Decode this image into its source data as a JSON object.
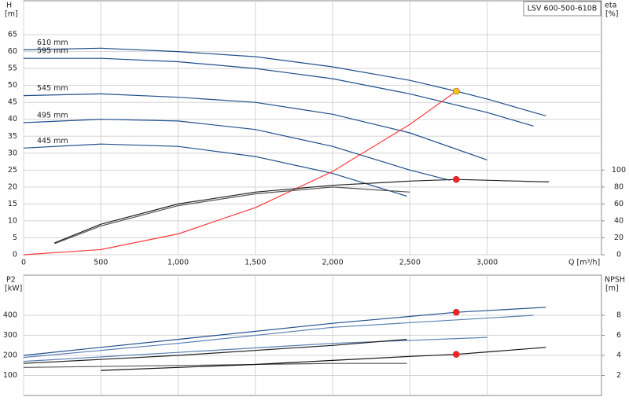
{
  "chart_data": [
    {
      "type": "line",
      "title": "LSV 600-500-610B",
      "xlabel": "Q [m³/h]",
      "ylabel": "H",
      "yunit": "[m]",
      "y2label": "eta",
      "y2unit": "[%]",
      "xlim": [
        0,
        3740
      ],
      "xticks": [
        0,
        500,
        {
          "value": 1000,
          "label": "1,000"
        },
        {
          "value": 1500,
          "label": "1,500"
        },
        {
          "value": 2000,
          "label": "2,000"
        },
        {
          "value": 2500,
          "label": "2,500"
        },
        {
          "value": 3000,
          "label": "3,000"
        }
      ],
      "ylim": [
        0,
        75
      ],
      "yticks": [
        0,
        5,
        10,
        15,
        20,
        25,
        30,
        35,
        40,
        45,
        50,
        55,
        60,
        65
      ],
      "y2lim": [
        0,
        300
      ],
      "y2ticks": [
        0,
        20,
        40,
        60,
        80,
        100
      ],
      "grid": true,
      "series": [
        {
          "name": "610 mm",
          "color": "#1f4e8c",
          "x": [
            0,
            500,
            1000,
            1500,
            2000,
            2500,
            2800,
            3000,
            3380
          ],
          "values": [
            60.5,
            61,
            60,
            58.5,
            55.5,
            51.5,
            48.3,
            46,
            41
          ]
        },
        {
          "name": "595 mm",
          "color": "#1f4e8c",
          "x": [
            0,
            500,
            1000,
            1500,
            2000,
            2500,
            3000,
            3300
          ],
          "values": [
            58,
            58,
            57,
            55,
            52,
            47.5,
            42,
            38
          ]
        },
        {
          "name": "545 mm",
          "color": "#1f4e8c",
          "x": [
            0,
            500,
            1000,
            1500,
            2000,
            2500,
            3000
          ],
          "values": [
            47,
            47.5,
            46.5,
            45,
            41.5,
            36,
            28
          ]
        },
        {
          "name": "495 mm",
          "color": "#1f4e8c",
          "x": [
            0,
            500,
            1000,
            1500,
            2000,
            2500,
            2760
          ],
          "values": [
            39,
            40,
            39.5,
            37,
            32,
            25,
            22
          ]
        },
        {
          "name": "445 mm",
          "color": "#1f4e8c",
          "x": [
            0,
            500,
            1000,
            1500,
            2000,
            2480
          ],
          "values": [
            31.5,
            32.7,
            32,
            29,
            24,
            17.3
          ]
        },
        {
          "color": "#ff3b3b",
          "x": [
            0,
            500,
            1000,
            1500,
            2000,
            2500,
            2800
          ],
          "values": [
            0,
            1.54,
            6.16,
            13.9,
            24.6,
            38.5,
            48.3
          ]
        },
        {
          "color": "#222222",
          "axis": "y2",
          "x": [
            200,
            500,
            1000,
            1500,
            2000,
            2500,
            2800,
            3400
          ],
          "values": [
            14,
            36,
            60,
            74,
            82,
            87,
            89,
            86
          ]
        },
        {
          "color": "#555555",
          "axis": "y2",
          "x": [
            200,
            500,
            1000,
            1500,
            2000,
            2500
          ],
          "values": [
            13,
            34,
            58,
            72,
            80,
            74
          ]
        },
        {
          "color": "#f5c518",
          "marker": true,
          "x": [
            2800
          ],
          "values": [
            48.3
          ]
        },
        {
          "color": "#ff2020",
          "marker": true,
          "axis": "y2",
          "x": [
            2800
          ],
          "values": [
            89
          ]
        }
      ]
    },
    {
      "type": "line",
      "ylabel": "P2",
      "yunit": "[kW]",
      "y2label": "NPSH",
      "y2unit": "[m]",
      "xlim": [
        0,
        3740
      ],
      "xticks": [
        0,
        500,
        1000,
        1500,
        2000,
        2500,
        3000
      ],
      "x_tick_labels": false,
      "ylim": [
        0,
        600
      ],
      "yticks": [
        100,
        200,
        300,
        400
      ],
      "y2lim": [
        0,
        12
      ],
      "y2ticks": [
        2,
        4,
        6,
        8
      ],
      "grid": true,
      "series": [
        {
          "color": "#1f4e8c",
          "x": [
            0,
            1000,
            2000,
            2800,
            3380
          ],
          "values": [
            200,
            280,
            360,
            415,
            440
          ]
        },
        {
          "color": "#5a7fb5",
          "x": [
            0,
            1000,
            2000,
            3300
          ],
          "values": [
            190,
            260,
            340,
            400
          ]
        },
        {
          "color": "#5a7fb5",
          "x": [
            0,
            1000,
            2000,
            3000
          ],
          "values": [
            170,
            215,
            260,
            290
          ]
        },
        {
          "color": "#222222",
          "x": [
            0,
            1000,
            2000,
            2480
          ],
          "values": [
            160,
            200,
            250,
            280
          ]
        },
        {
          "color": "#555555",
          "x": [
            0,
            1000,
            2000,
            2480
          ],
          "values": [
            140,
            150,
            160,
            160
          ]
        },
        {
          "color": "#111111",
          "axis": "y2",
          "x": [
            500,
            1000,
            1500,
            2000,
            2500,
            2800,
            3380
          ],
          "values": [
            2.5,
            2.8,
            3.1,
            3.5,
            3.9,
            4.1,
            4.8
          ]
        },
        {
          "color": "#ff2020",
          "marker": true,
          "x": [
            2800
          ],
          "values": [
            415
          ]
        },
        {
          "color": "#ff2020",
          "marker": true,
          "axis": "y2",
          "x": [
            2800
          ],
          "values": [
            4.1
          ]
        }
      ]
    }
  ]
}
